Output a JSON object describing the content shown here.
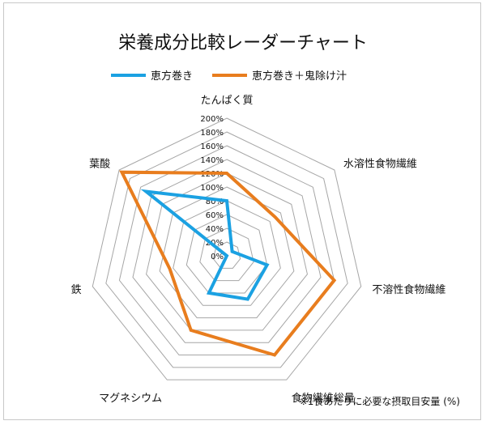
{
  "chart_data": {
    "type": "radar",
    "title": "栄養成分比較レーダーチャート",
    "axes": [
      "たんぱく質",
      "水溶性食物繊維",
      "不溶性食物繊維",
      "食物繊維総量",
      "マグネシウム",
      "鉄",
      "葉酸"
    ],
    "rticks": [
      "0%",
      "20%",
      "40%",
      "60%",
      "80%",
      "100%",
      "120%",
      "140%",
      "160%",
      "180%",
      "200%"
    ],
    "rlim": [
      0,
      200
    ],
    "series": [
      {
        "name": "恵方巻き",
        "color": "#1ba1e2",
        "values": [
          80,
          10,
          60,
          70,
          60,
          0,
          150
        ]
      },
      {
        "name": "恵方巻き＋鬼除け汁",
        "color": "#e87d1e",
        "values": [
          120,
          90,
          160,
          160,
          120,
          85,
          195
        ]
      }
    ],
    "note": "※1食あたりに必要な摂取目安量 (%)",
    "grid": true,
    "legend_position": "top"
  }
}
